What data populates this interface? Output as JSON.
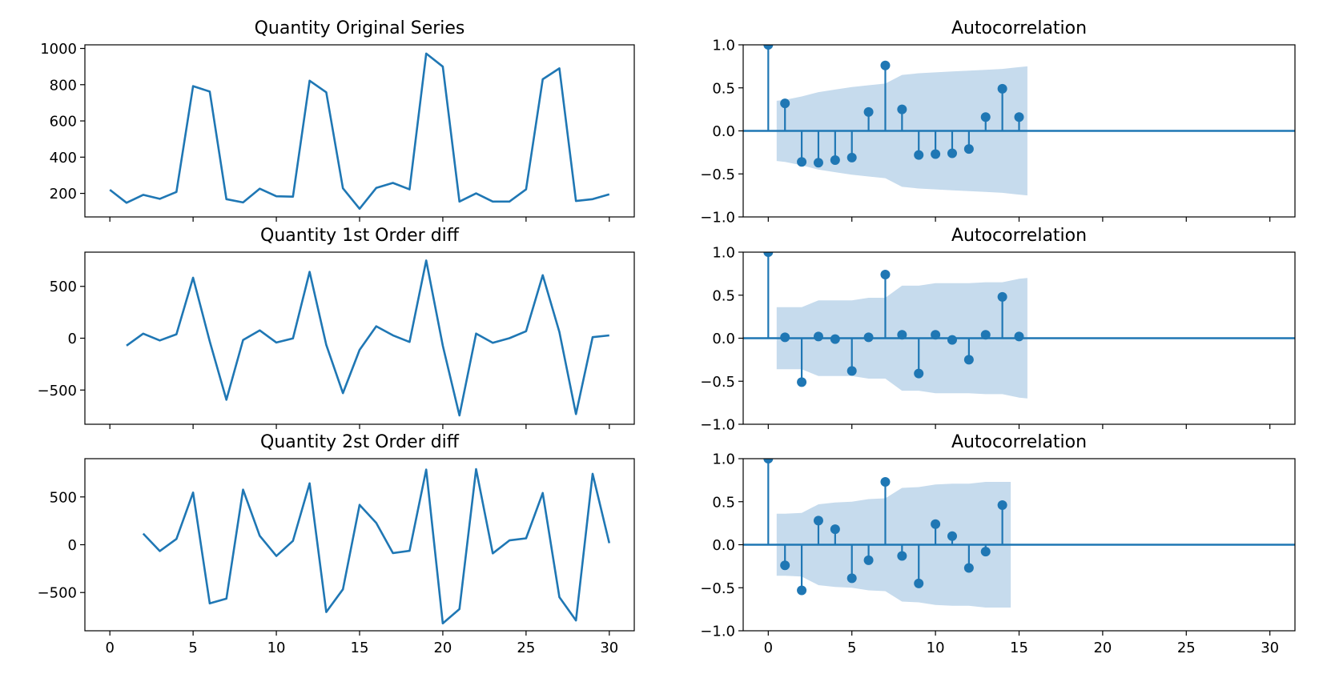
{
  "chart_data": [
    {
      "type": "line",
      "title": "Quantity Original Series",
      "xlabel": "",
      "ylabel": "",
      "xlim": [
        -1.5,
        31.5
      ],
      "ylim": [
        70,
        1020
      ],
      "yticks": [
        200,
        400,
        600,
        800,
        1000
      ],
      "ytick_labels": [
        "200",
        "400",
        "600",
        "800",
        "1000"
      ],
      "xticks": [
        0,
        5,
        10,
        15,
        20,
        25,
        30
      ],
      "xtick_labels": [],
      "grid": false,
      "series": [
        {
          "x": [
            0,
            1,
            2,
            3,
            4,
            5,
            6,
            7,
            8,
            9,
            10,
            11,
            12,
            13,
            14,
            15,
            16,
            17,
            18,
            19,
            20,
            21,
            22,
            23,
            24,
            25,
            26,
            27,
            28,
            29,
            30
          ],
          "values": [
            220,
            148,
            192,
            170,
            208,
            792,
            762,
            168,
            150,
            226,
            184,
            182,
            822,
            758,
            228,
            115,
            230,
            258,
            222,
            972,
            900,
            155,
            200,
            155,
            155,
            222,
            830,
            890,
            158,
            168,
            195
          ]
        }
      ]
    },
    {
      "type": "line",
      "title": "Quantity 1st Order diff",
      "xlabel": "",
      "ylabel": "",
      "xlim": [
        -1.5,
        31.5
      ],
      "ylim": [
        -830,
        830
      ],
      "yticks": [
        -500,
        0,
        500
      ],
      "ytick_labels": [
        "−500",
        "0",
        "500"
      ],
      "xticks": [
        0,
        5,
        10,
        15,
        20,
        25,
        30
      ],
      "xtick_labels": [],
      "grid": false,
      "series": [
        {
          "x": [
            1,
            2,
            3,
            4,
            5,
            6,
            7,
            8,
            9,
            10,
            11,
            12,
            13,
            14,
            15,
            16,
            17,
            18,
            19,
            20,
            21,
            22,
            23,
            24,
            25,
            26,
            27,
            28,
            29,
            30
          ],
          "values": [
            -72,
            44,
            -22,
            38,
            584,
            -30,
            -594,
            -18,
            76,
            -42,
            -2,
            640,
            -64,
            -530,
            -113,
            115,
            28,
            -36,
            750,
            -72,
            -745,
            45,
            -45,
            0,
            67,
            608,
            60,
            -732,
            10,
            27
          ]
        }
      ]
    },
    {
      "type": "line",
      "title": "Quantity 2st Order diff",
      "xlabel": "",
      "ylabel": "",
      "xlim": [
        -1.5,
        31.5
      ],
      "ylim": [
        -900,
        900
      ],
      "yticks": [
        -500,
        0,
        500
      ],
      "ytick_labels": [
        "−500",
        "0",
        "500"
      ],
      "xticks": [
        0,
        5,
        10,
        15,
        20,
        25,
        30
      ],
      "xtick_labels": [
        "0",
        "5",
        "10",
        "15",
        "20",
        "25",
        "30"
      ],
      "grid": false,
      "series": [
        {
          "x": [
            2,
            3,
            4,
            5,
            6,
            7,
            8,
            9,
            10,
            11,
            12,
            13,
            14,
            15,
            16,
            17,
            18,
            19,
            20,
            21,
            22,
            23,
            24,
            25,
            26,
            27,
            28,
            29,
            30
          ],
          "values": [
            116,
            -66,
            60,
            546,
            -614,
            -564,
            576,
            94,
            -118,
            40,
            642,
            -704,
            -466,
            417,
            228,
            -87,
            -64,
            786,
            -822,
            -673,
            790,
            -90,
            45,
            67,
            541,
            -548,
            -792,
            742,
            17
          ]
        }
      ]
    },
    {
      "type": "stem",
      "title": "Autocorrelation",
      "xlabel": "",
      "ylabel": "",
      "xlim": [
        -1.5,
        31.5
      ],
      "ylim": [
        -1.0,
        1.0
      ],
      "yticks": [
        -1.0,
        -0.5,
        0.0,
        0.5,
        1.0
      ],
      "ytick_labels": [
        "−1.0",
        "−0.5",
        "0.0",
        "0.5",
        "1.0"
      ],
      "xticks": [
        0,
        5,
        10,
        15,
        20,
        25,
        30
      ],
      "xtick_labels": [],
      "grid": false,
      "lags": [
        0,
        1,
        2,
        3,
        4,
        5,
        6,
        7,
        8,
        9,
        10,
        11,
        12,
        13,
        14,
        15
      ],
      "values": [
        1.0,
        0.32,
        -0.36,
        -0.37,
        -0.34,
        -0.31,
        0.22,
        0.76,
        0.25,
        -0.28,
        -0.27,
        -0.26,
        -0.21,
        0.16,
        0.49,
        0.16
      ],
      "confidence_band": {
        "lags": [
          0.5,
          1,
          2,
          3,
          4,
          5,
          6,
          7,
          8,
          9,
          10,
          11,
          12,
          13,
          14,
          15,
          15.5
        ],
        "upper": [
          0.35,
          0.36,
          0.4,
          0.45,
          0.48,
          0.51,
          0.53,
          0.55,
          0.65,
          0.67,
          0.68,
          0.69,
          0.7,
          0.71,
          0.72,
          0.74,
          0.75
        ]
      }
    },
    {
      "type": "stem",
      "title": "Autocorrelation",
      "xlabel": "",
      "ylabel": "",
      "xlim": [
        -1.5,
        31.5
      ],
      "ylim": [
        -1.0,
        1.0
      ],
      "yticks": [
        -1.0,
        -0.5,
        0.0,
        0.5,
        1.0
      ],
      "ytick_labels": [
        "−1.0",
        "−0.5",
        "0.0",
        "0.5",
        "1.0"
      ],
      "xticks": [
        0,
        5,
        10,
        15,
        20,
        25,
        30
      ],
      "xtick_labels": [],
      "grid": false,
      "lags": [
        0,
        1,
        2,
        3,
        4,
        5,
        6,
        7,
        8,
        9,
        10,
        11,
        12,
        13,
        14,
        15
      ],
      "values": [
        1.0,
        0.01,
        -0.51,
        0.02,
        -0.01,
        -0.38,
        0.01,
        0.74,
        0.04,
        -0.41,
        0.04,
        -0.02,
        -0.25,
        0.04,
        0.48,
        0.02
      ],
      "confidence_band": {
        "lags": [
          0.5,
          1,
          2,
          3,
          4,
          5,
          6,
          7,
          8,
          9,
          10,
          11,
          12,
          13,
          14,
          15,
          15.5
        ],
        "upper": [
          0.36,
          0.36,
          0.36,
          0.44,
          0.44,
          0.44,
          0.47,
          0.47,
          0.61,
          0.61,
          0.64,
          0.64,
          0.64,
          0.65,
          0.65,
          0.69,
          0.7
        ]
      }
    },
    {
      "type": "stem",
      "title": "Autocorrelation",
      "xlabel": "",
      "ylabel": "",
      "xlim": [
        -1.5,
        31.5
      ],
      "ylim": [
        -1.0,
        1.0
      ],
      "yticks": [
        -1.0,
        -0.5,
        0.0,
        0.5,
        1.0
      ],
      "ytick_labels": [
        "−1.0",
        "−0.5",
        "0.0",
        "0.5",
        "1.0"
      ],
      "xticks": [
        0,
        5,
        10,
        15,
        20,
        25,
        30
      ],
      "xtick_labels": [
        "0",
        "5",
        "10",
        "15",
        "20",
        "25",
        "30"
      ],
      "grid": false,
      "lags": [
        0,
        1,
        2,
        3,
        4,
        5,
        6,
        7,
        8,
        9,
        10,
        11,
        12,
        13,
        14
      ],
      "values": [
        1.0,
        -0.24,
        -0.53,
        0.28,
        0.18,
        -0.39,
        -0.18,
        0.73,
        -0.13,
        -0.45,
        0.24,
        0.1,
        -0.27,
        -0.08,
        0.46
      ],
      "confidence_band": {
        "lags": [
          0.5,
          1,
          2,
          3,
          4,
          5,
          6,
          7,
          8,
          9,
          10,
          11,
          12,
          13,
          14,
          14.5
        ],
        "upper": [
          0.36,
          0.36,
          0.37,
          0.47,
          0.49,
          0.5,
          0.53,
          0.54,
          0.66,
          0.67,
          0.7,
          0.71,
          0.71,
          0.73,
          0.73,
          0.73
        ]
      }
    }
  ],
  "colors": {
    "line": "#1f77b4",
    "band": "#c6dbed",
    "axes": "#000000"
  }
}
